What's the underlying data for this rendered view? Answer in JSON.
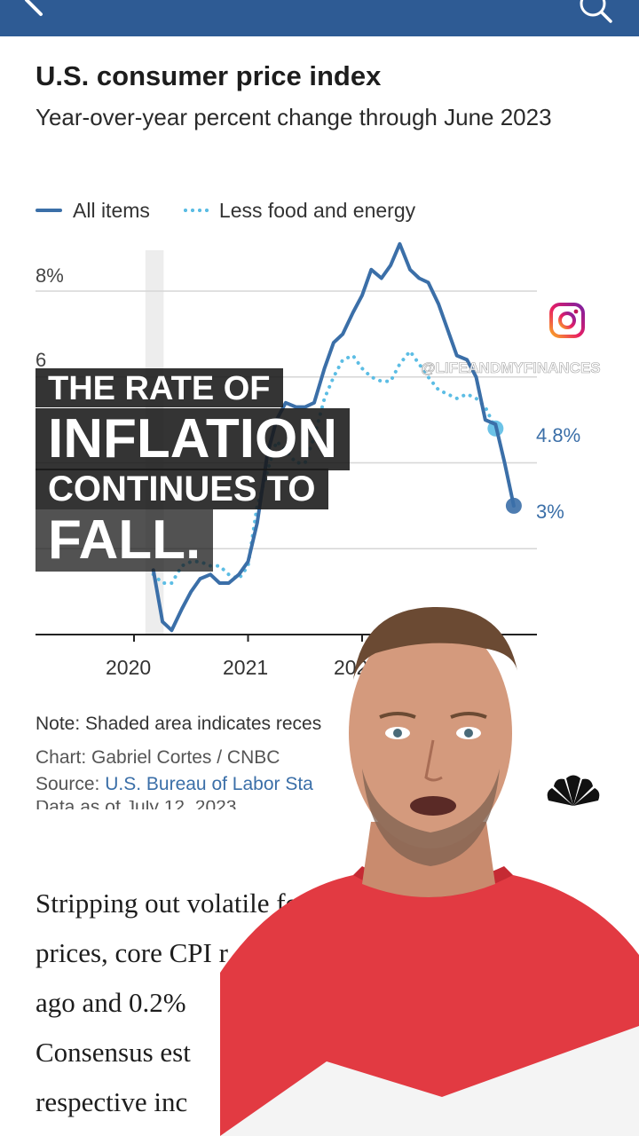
{
  "nav": {
    "back_icon": "back-arrow-icon",
    "search_icon": "search-icon",
    "bar_color": "#2e5b94"
  },
  "article": {
    "chart_title": "U.S. consumer price index",
    "chart_subtitle": "Year-over-year percent change through June 2023",
    "note": "Note: Shaded area indicates reces",
    "chart_credit": "Chart: Gabriel Cortes / CNBC",
    "source_label": "Source:",
    "source_link": "U.S. Bureau of Labor Sta",
    "date_partial": "Data as of July 12, 2023",
    "body_lines": [
      "Stripping out volatile fo",
      "prices, core CPI r",
      "ago and 0.2%",
      "Consensus est",
      "respective inc"
    ]
  },
  "overlay": {
    "caption_line1": "THE RATE OF",
    "caption_line2": "INFLATION",
    "caption_line3": "CONTINUES TO",
    "caption_line4": "FALL.",
    "watermark": "@LIFEANDMYFINANCES",
    "instagram_icon": "instagram-icon",
    "network_logo_icon": "nbc-peacock-icon"
  },
  "chart_data": {
    "type": "line",
    "title": "U.S. consumer price index",
    "subtitle": "Year-over-year percent change through June 2023",
    "y_ticks": [
      "8%",
      "6"
    ],
    "x_ticks": [
      "2020",
      "2021",
      "202"
    ],
    "ylim": [
      -0.2,
      9.2
    ],
    "xlim": [
      2019.25,
      2023.6
    ],
    "grid": true,
    "legend_placement": "top-left",
    "recession_shading": [
      2020.1,
      2020.26
    ],
    "series": [
      {
        "name": "All items",
        "color": "#3b6fa8",
        "style": "solid",
        "end_label": "3%",
        "points": [
          [
            2020.17,
            1.5
          ],
          [
            2020.25,
            0.3
          ],
          [
            2020.33,
            0.1
          ],
          [
            2020.42,
            0.6
          ],
          [
            2020.5,
            1.0
          ],
          [
            2020.58,
            1.3
          ],
          [
            2020.67,
            1.4
          ],
          [
            2020.75,
            1.2
          ],
          [
            2020.83,
            1.2
          ],
          [
            2020.92,
            1.4
          ],
          [
            2021.0,
            1.7
          ],
          [
            2021.08,
            2.6
          ],
          [
            2021.17,
            4.2
          ],
          [
            2021.25,
            5.0
          ],
          [
            2021.33,
            5.4
          ],
          [
            2021.42,
            5.3
          ],
          [
            2021.5,
            5.3
          ],
          [
            2021.58,
            5.4
          ],
          [
            2021.67,
            6.2
          ],
          [
            2021.75,
            6.8
          ],
          [
            2021.83,
            7.0
          ],
          [
            2021.92,
            7.5
          ],
          [
            2022.0,
            7.9
          ],
          [
            2022.08,
            8.5
          ],
          [
            2022.17,
            8.3
          ],
          [
            2022.25,
            8.6
          ],
          [
            2022.33,
            9.1
          ],
          [
            2022.42,
            8.5
          ],
          [
            2022.5,
            8.3
          ],
          [
            2022.58,
            8.2
          ],
          [
            2022.67,
            7.7
          ],
          [
            2022.75,
            7.1
          ],
          [
            2022.83,
            6.5
          ],
          [
            2022.92,
            6.4
          ],
          [
            2023.0,
            6.0
          ],
          [
            2023.08,
            5.0
          ],
          [
            2023.17,
            4.9
          ],
          [
            2023.25,
            4.0
          ],
          [
            2023.33,
            3.0
          ]
        ]
      },
      {
        "name": "Less food and energy",
        "color": "#5cbde4",
        "style": "dotted",
        "end_label": "4.8%",
        "points": [
          [
            2020.17,
            1.4
          ],
          [
            2020.25,
            1.2
          ],
          [
            2020.33,
            1.2
          ],
          [
            2020.42,
            1.6
          ],
          [
            2020.5,
            1.7
          ],
          [
            2020.58,
            1.7
          ],
          [
            2020.67,
            1.6
          ],
          [
            2020.75,
            1.6
          ],
          [
            2020.83,
            1.4
          ],
          [
            2020.92,
            1.3
          ],
          [
            2021.0,
            1.6
          ],
          [
            2021.08,
            3.0
          ],
          [
            2021.17,
            3.8
          ],
          [
            2021.25,
            4.5
          ],
          [
            2021.33,
            4.3
          ],
          [
            2021.42,
            4.0
          ],
          [
            2021.5,
            4.0
          ],
          [
            2021.58,
            4.6
          ],
          [
            2021.67,
            5.5
          ],
          [
            2021.75,
            6.0
          ],
          [
            2021.83,
            6.4
          ],
          [
            2021.92,
            6.5
          ],
          [
            2022.0,
            6.2
          ],
          [
            2022.08,
            6.0
          ],
          [
            2022.17,
            5.9
          ],
          [
            2022.25,
            5.9
          ],
          [
            2022.33,
            6.3
          ],
          [
            2022.42,
            6.6
          ],
          [
            2022.5,
            6.3
          ],
          [
            2022.58,
            6.0
          ],
          [
            2022.67,
            5.7
          ],
          [
            2022.75,
            5.6
          ],
          [
            2022.83,
            5.5
          ],
          [
            2022.92,
            5.6
          ],
          [
            2023.0,
            5.5
          ],
          [
            2023.08,
            5.3
          ],
          [
            2023.17,
            4.8
          ]
        ]
      }
    ]
  }
}
